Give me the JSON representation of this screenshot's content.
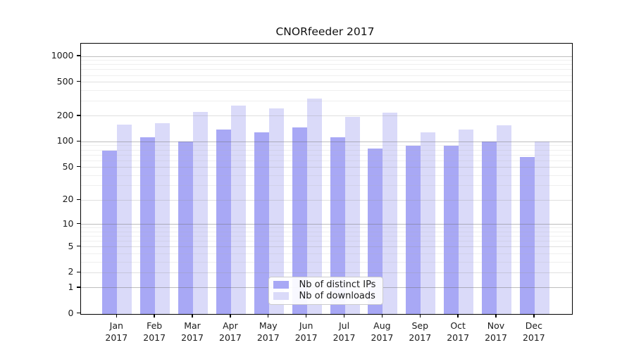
{
  "chart_data": {
    "type": "bar",
    "title": "CNORfeeder 2017",
    "categories": [
      "Jan",
      "Feb",
      "Mar",
      "Apr",
      "May",
      "Jun",
      "Jul",
      "Aug",
      "Sep",
      "Oct",
      "Nov",
      "Dec"
    ],
    "year": "2017",
    "series": [
      {
        "name": "Nb of distinct IPs",
        "color": "#a8a8f5",
        "values": [
          78,
          113,
          100,
          138,
          130,
          147,
          112,
          84,
          89,
          90,
          100,
          66
        ]
      },
      {
        "name": "Nb of downloads",
        "color": "#dadaf9",
        "values": [
          158,
          165,
          225,
          268,
          245,
          322,
          198,
          218,
          128,
          140,
          157,
          100
        ]
      }
    ],
    "xlabel": "",
    "ylabel": "",
    "y_axis": {
      "scale": "log10(1+x)",
      "ticks": [
        0,
        1,
        2,
        5,
        10,
        20,
        50,
        100,
        200,
        500,
        1000
      ],
      "ylim": [
        0,
        1415
      ]
    },
    "grid": {
      "enabled": true,
      "major_ticks": [
        1,
        10,
        100,
        1000
      ],
      "labeled_minor_ticks": [
        2,
        5,
        20,
        50,
        200,
        500
      ],
      "unlabeled_minor_ticks": [
        3,
        4,
        6,
        7,
        8,
        9,
        30,
        40,
        60,
        70,
        80,
        90,
        300,
        400,
        600,
        700,
        800,
        900
      ]
    },
    "legend": {
      "position": "bottom-center-inside"
    },
    "colors": {
      "distinct_ips_bar": "#a8a8f5",
      "downloads_bar": "#dadaf9",
      "spine": "#000000",
      "text": "#1a1a1a",
      "background": "#ffffff"
    }
  }
}
